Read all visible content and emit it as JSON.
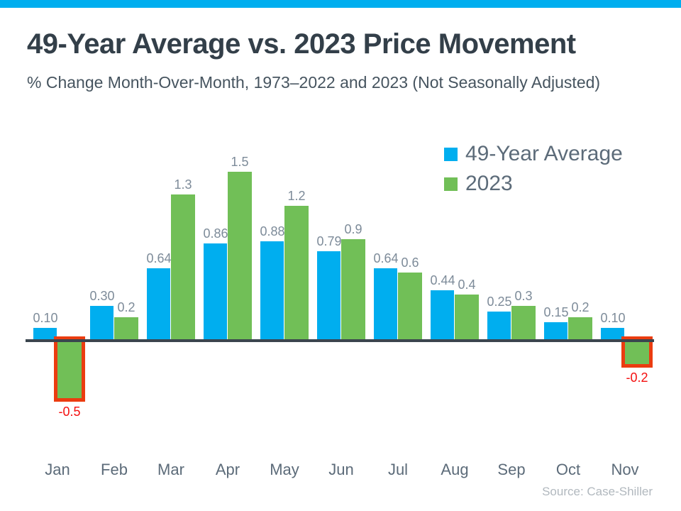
{
  "theme": {
    "accent_bar_color": "#00AEEF",
    "background_color": "#FFFFFF"
  },
  "chart_data": {
    "type": "bar",
    "title": "49-Year Average vs. 2023 Price Movement",
    "subtitle": "% Change Month-Over-Month, 1973–2022 and 2023 (Not Seasonally Adjusted)",
    "categories": [
      "Jan",
      "Feb",
      "Mar",
      "Apr",
      "May",
      "Jun",
      "Jul",
      "Aug",
      "Sep",
      "Oct",
      "Nov"
    ],
    "series": [
      {
        "name": "49-Year Average",
        "color": "#00AEEF",
        "values": [
          0.1,
          0.3,
          0.64,
          0.86,
          0.88,
          0.79,
          0.64,
          0.44,
          0.25,
          0.15,
          0.1
        ],
        "labels": [
          "0.10",
          "0.30",
          "0.64",
          "0.86",
          "0.88",
          "0.79",
          "0.64",
          "0.44",
          "0.25",
          "0.15",
          "0.10"
        ]
      },
      {
        "name": "2023",
        "color": "#71BF57",
        "values": [
          -0.5,
          0.2,
          1.3,
          1.5,
          1.2,
          0.9,
          0.6,
          0.4,
          0.3,
          0.2,
          -0.2
        ],
        "labels": [
          "-0.5",
          "0.2",
          "1.3",
          "1.5",
          "1.2",
          "0.9",
          "0.6",
          "0.4",
          "0.3",
          "0.2",
          "-0.2"
        ]
      }
    ],
    "highlight": {
      "box_color": "#EB3C10",
      "label_color": "#F40F0F",
      "highlighted_months": [
        "Jan",
        "Nov"
      ]
    },
    "axis_color": "#3B454E",
    "ylim": [
      -0.5,
      1.5
    ],
    "grid": false,
    "legend_position": "top-right",
    "value_labels": true,
    "source": "Source: Case-Shiller"
  }
}
